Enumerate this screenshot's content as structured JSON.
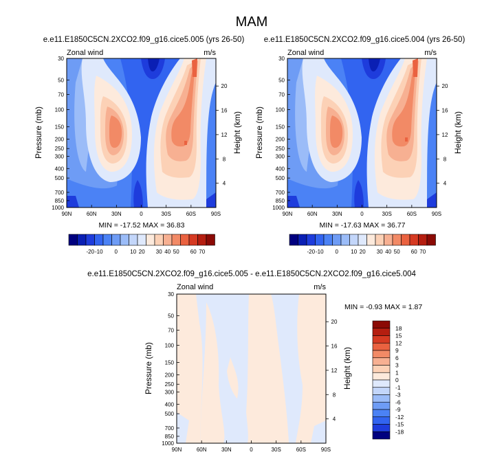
{
  "figure_title": "MAM",
  "panels": [
    {
      "title": "e.e11.E1850C5CN.2XCO2.f09_g16.cice5.005 (yrs 26-50)",
      "left_label": "Zonal wind",
      "right_label": "m/s",
      "ylabel": "Pressure (mb)",
      "y2label": "Height (km)",
      "stats": "MIN = -17.52  MAX = 36.83"
    },
    {
      "title": "e.e11.E1850C5CN.2XCO2.f09_g16.cice5.004 (yrs 26-50)",
      "left_label": "Zonal wind",
      "right_label": "m/s",
      "ylabel": "Pressure (mb)",
      "y2label": "Height (km)",
      "stats": "MIN = -17.63  MAX = 36.77"
    },
    {
      "title": "e.e11.E1850C5CN.2XCO2.f09_g16.cice5.005 - e.e11.E1850C5CN.2XCO2.f09_g16.cice5.004",
      "left_label": "Zonal wind",
      "right_label": "m/s",
      "ylabel": "Pressure (mb)",
      "y2label": "Height (km)",
      "stats": "MIN = -0.93  MAX =  1.87"
    }
  ],
  "chart_data": [
    {
      "type": "heatmap",
      "title": "e.e11.E1850C5CN.2XCO2.f09_g16.cice5.005 (yrs 26-50)",
      "xlabel": "",
      "ylabel": "Pressure (mb)",
      "y2label": "Height (km)",
      "x_ticks": [
        "90N",
        "60N",
        "30N",
        "0",
        "30S",
        "60S",
        "90S"
      ],
      "y_ticks": [
        "30",
        "50",
        "70",
        "100",
        "150",
        "200",
        "250",
        "300",
        "400",
        "500",
        "700",
        "850",
        "1000"
      ],
      "y2_ticks": [
        "4",
        "8",
        "12",
        "16",
        "20"
      ],
      "yscale": "log",
      "ylim": [
        1000,
        30
      ],
      "xlim": [
        90,
        -90
      ],
      "min": -17.52,
      "max": 36.83,
      "colorbar_labels": [
        "-20",
        "-10",
        "0",
        "10",
        "20",
        "30",
        "40",
        "50",
        "60",
        "70"
      ],
      "features": [
        {
          "lat": 30,
          "p": 175,
          "value": 36,
          "kind": "westerly-jet"
        },
        {
          "lat": -45,
          "p": 190,
          "value": 30,
          "kind": "westerly-jet"
        },
        {
          "lat": -65,
          "p": 30,
          "value": 35,
          "kind": "stratospheric-westerly"
        },
        {
          "lat": -15,
          "p": 30,
          "value": -17,
          "kind": "easterly"
        },
        {
          "lat": 0,
          "p": 700,
          "value": -6,
          "kind": "easterly"
        }
      ]
    },
    {
      "type": "heatmap",
      "title": "e.e11.E1850C5CN.2XCO2.f09_g16.cice5.004 (yrs 26-50)",
      "xlabel": "",
      "ylabel": "Pressure (mb)",
      "y2label": "Height (km)",
      "x_ticks": [
        "90N",
        "60N",
        "30N",
        "0",
        "30S",
        "60S",
        "90S"
      ],
      "y_ticks": [
        "30",
        "50",
        "70",
        "100",
        "150",
        "200",
        "250",
        "300",
        "400",
        "500",
        "700",
        "850",
        "1000"
      ],
      "y2_ticks": [
        "4",
        "8",
        "12",
        "16",
        "20"
      ],
      "yscale": "log",
      "ylim": [
        1000,
        30
      ],
      "xlim": [
        90,
        -90
      ],
      "min": -17.63,
      "max": 36.77,
      "colorbar_labels": [
        "-20",
        "-10",
        "0",
        "10",
        "20",
        "30",
        "40",
        "50",
        "60",
        "70"
      ],
      "features": [
        {
          "lat": 30,
          "p": 175,
          "value": 36,
          "kind": "westerly-jet"
        },
        {
          "lat": -45,
          "p": 190,
          "value": 30,
          "kind": "westerly-jet"
        },
        {
          "lat": -65,
          "p": 30,
          "value": 35,
          "kind": "stratospheric-westerly"
        },
        {
          "lat": -15,
          "p": 30,
          "value": -17,
          "kind": "easterly"
        },
        {
          "lat": 0,
          "p": 700,
          "value": -6,
          "kind": "easterly"
        }
      ]
    },
    {
      "type": "heatmap",
      "title": "e.e11.E1850C5CN.2XCO2.f09_g16.cice5.005 - e.e11.E1850C5CN.2XCO2.f09_g16.cice5.004",
      "xlabel": "",
      "ylabel": "Pressure (mb)",
      "y2label": "Height (km)",
      "x_ticks": [
        "90N",
        "60N",
        "30N",
        "0",
        "30S",
        "60S",
        "90S"
      ],
      "y_ticks": [
        "30",
        "50",
        "70",
        "100",
        "150",
        "200",
        "250",
        "300",
        "400",
        "500",
        "700",
        "850",
        "1000"
      ],
      "y2_ticks": [
        "4",
        "8",
        "12",
        "16",
        "20"
      ],
      "yscale": "log",
      "ylim": [
        1000,
        30
      ],
      "xlim": [
        90,
        -90
      ],
      "min": -0.93,
      "max": 1.87,
      "colorbar_labels": [
        "18",
        "15",
        "12",
        "9",
        "6",
        "3",
        "1",
        "0",
        "-1",
        "-3",
        "-6",
        "-9",
        "-12",
        "-15",
        "-18"
      ],
      "regions": [
        {
          "lat_range": [
            90,
            62
          ],
          "value": 0.5
        },
        {
          "lat_range": [
            62,
            5
          ],
          "value": -0.3
        },
        {
          "lat_range": [
            5,
            -35
          ],
          "value": 0.5
        },
        {
          "lat_range": [
            -35,
            -60
          ],
          "value": -0.3
        },
        {
          "lat_range": [
            -60,
            -90
          ],
          "value": 0.5
        }
      ]
    }
  ],
  "colors": {
    "diverging": [
      "#00007f",
      "#0a1fb4",
      "#1e3cdc",
      "#3264f0",
      "#4b82f5",
      "#6e9cf5",
      "#9bbcf8",
      "#c3d6fa",
      "#dfe9fc",
      "#fdeadc",
      "#fcd1b6",
      "#f7b092",
      "#f28a66",
      "#ea6240",
      "#d63a22",
      "#b51e10",
      "#8b0a05"
    ]
  }
}
